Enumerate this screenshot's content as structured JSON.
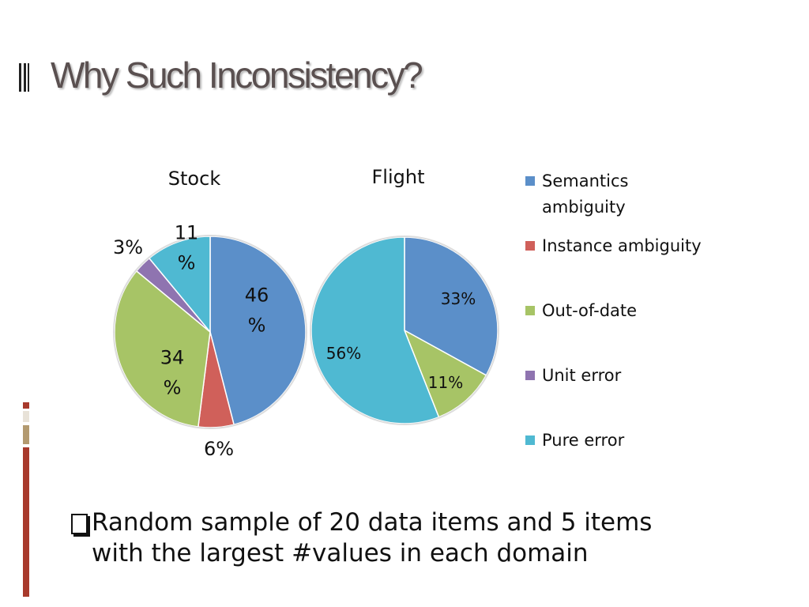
{
  "title": "Why Such Inconsistency?",
  "chart_data": {
    "type": "pie",
    "categories": [
      "Semantics ambiguity",
      "Instance ambiguity",
      "Out-of-date",
      "Unit error",
      "Pure error"
    ],
    "colors": [
      "#5b8fc9",
      "#d0605a",
      "#a7c466",
      "#8f74b0",
      "#4fb9d2"
    ],
    "series": [
      {
        "name": "Stock",
        "values": [
          46,
          6,
          34,
          3,
          11
        ],
        "value_labels": [
          "46\n%",
          "6%",
          "34\n%",
          "3%",
          "11\n%"
        ]
      },
      {
        "name": "Flight",
        "values": [
          33,
          0,
          11,
          0,
          56
        ],
        "value_labels": [
          "33%",
          null,
          "11%",
          null,
          "56%"
        ]
      }
    ]
  },
  "note": "Random sample of 20 data items and 5 items\nwith the largest #values in each domain"
}
